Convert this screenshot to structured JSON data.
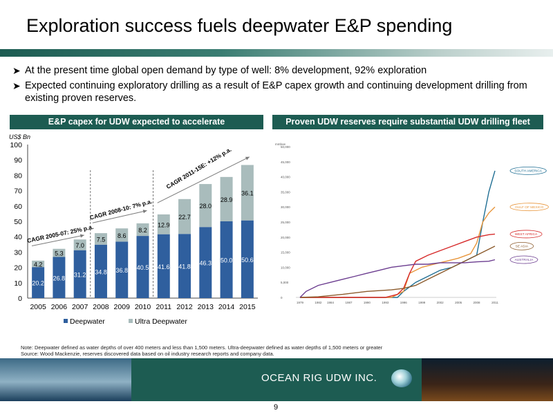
{
  "slide": {
    "title": "Exploration success fuels deepwater E&P spending",
    "bullets": [
      "At the present time global open demand  by type of well: 8% development, 92% exploration",
      "Expected continuing exploratory drilling as a result of E&P capex growth and continuing development drilling from existing proven reserves."
    ],
    "bullet_icon": "arrow-bullet-icon",
    "left_panel_title": "E&P capex for UDW expected to accelerate",
    "right_panel_title": "Proven UDW reserves require substantial UDW drilling fleet",
    "note_lines": [
      "Note:  Deepwater defined as water depths of over 400 meters and less than 1,500 meters. Ultra-deepwater defined as water depths of 1,500 meters or greater",
      "Source:    Wood Mackenzie, reserves discovered data based on oil industry research reports and company data."
    ],
    "company": "OCEAN RIG UDW INC.",
    "page_number": "9",
    "colors": {
      "brand": "#1d5c52",
      "deepwater": "#2f5f9e",
      "ultra_deepwater": "#a9bcbc"
    }
  },
  "chart_data": [
    {
      "type": "bar",
      "stacked": true,
      "categories": [
        "2005",
        "2006",
        "2007",
        "2008",
        "2009",
        "2010",
        "2011",
        "2012",
        "2013",
        "2014",
        "2015"
      ],
      "series": [
        {
          "name": "Deepwater",
          "values": [
            20.2,
            26.8,
            31.2,
            34.8,
            36.8,
            40.5,
            41.6,
            41.8,
            46.3,
            50.0,
            50.6
          ],
          "labels": [
            "20.2",
            "26.8",
            "31.2",
            "34.8",
            "36.8",
            "40.5",
            "41.6",
            "41.8",
            "46.3",
            "50.0",
            "50.6"
          ]
        },
        {
          "name": "Ultra Deepwater",
          "values": [
            4.2,
            5.3,
            7.0,
            7.5,
            8.6,
            8.2,
            12.9,
            22.7,
            28.0,
            28.9,
            36.1
          ],
          "labels": [
            "4.2",
            "5.3",
            "7.0",
            "7.5",
            "8.6",
            "8.2",
            "12.9",
            "22.7",
            "28.0",
            "28.9",
            "36.1"
          ]
        }
      ],
      "ylabel": "US$ Bn",
      "ylim": [
        0,
        100
      ],
      "yticks": [
        "0",
        "10",
        "20",
        "30",
        "40",
        "50",
        "60",
        "70",
        "80",
        "90",
        "100"
      ],
      "legend": "bottom",
      "annotations": [
        "CAGR 2005-07: 25% p.a.",
        "CAGR 2008-10: 7% p.a.",
        "CAGR 2011-15E: +12% p.a."
      ],
      "dividers_after": [
        "2007",
        "2010"
      ],
      "dotted_legend_marker_color": "#2f5f9e"
    },
    {
      "type": "line",
      "xticks": [
        "1979",
        "1982",
        "1984",
        "1987",
        "1990",
        "1993",
        "1996",
        "1999",
        "2002",
        "2005",
        "2008",
        "2011"
      ],
      "yticks": [
        "0",
        "5,000",
        "10,000",
        "15,000",
        "20,000",
        "25,000",
        "30,000",
        "35,000",
        "40,000",
        "45,000",
        "50,000"
      ],
      "ylim": [
        0,
        50000
      ],
      "ylabel": "mmboe",
      "series": [
        {
          "name": "SOUTH AMERICA",
          "color": "#1f6e93",
          "x": [
            1979,
            1984,
            1990,
            1995,
            1996,
            1998,
            2000,
            2002,
            2004,
            2006,
            2007,
            2008,
            2009,
            2010,
            2011
          ],
          "y": [
            0,
            0,
            0,
            0,
            2000,
            5000,
            7000,
            9000,
            10000,
            12000,
            13000,
            14000,
            25000,
            35000,
            42000
          ]
        },
        {
          "name": "GULF OF MEXICO",
          "color": "#e8953a",
          "x": [
            1979,
            1994,
            1996,
            1997,
            1999,
            2001,
            2003,
            2005,
            2007,
            2008,
            2009,
            2010,
            2011
          ],
          "y": [
            0,
            0,
            2000,
            8000,
            10000,
            11000,
            12000,
            13000,
            14500,
            18000,
            25000,
            28000,
            30000
          ]
        },
        {
          "name": "WEST AFRICA",
          "color": "#d62a2a",
          "x": [
            1979,
            1993,
            1995,
            1996,
            1997,
            1998,
            2000,
            2002,
            2004,
            2006,
            2008,
            2010,
            2011
          ],
          "y": [
            0,
            0,
            1000,
            3000,
            8000,
            12000,
            14000,
            15500,
            17000,
            18500,
            20000,
            20800,
            21000
          ]
        },
        {
          "name": "SE ASIA",
          "color": "#8b5a2b",
          "x": [
            1979,
            1982,
            1986,
            1990,
            1994,
            1996,
            1998,
            2000,
            2002,
            2004,
            2006,
            2008,
            2010,
            2011
          ],
          "y": [
            0,
            200,
            1000,
            2000,
            2500,
            3000,
            4000,
            6000,
            8000,
            10000,
            12000,
            14000,
            16000,
            17000
          ]
        },
        {
          "name": "AUSTRALIA",
          "color": "#6b3c8f",
          "x": [
            1979,
            1980,
            1982,
            1984,
            1986,
            1988,
            1990,
            1992,
            1994,
            1996,
            1998,
            2000,
            2002,
            2004,
            2006,
            2008,
            2010,
            2011
          ],
          "y": [
            0,
            2000,
            4000,
            5000,
            6000,
            7000,
            8000,
            9000,
            10000,
            10500,
            11000,
            11000,
            11500,
            11500,
            11500,
            11800,
            12000,
            12500
          ]
        }
      ]
    }
  ]
}
